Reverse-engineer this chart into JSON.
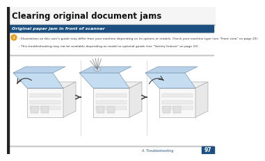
{
  "title": "Clearing original document jams",
  "title_fontsize": 8.5,
  "section_bar_color": "#1b5080",
  "section_text": "Original paper jam in front of scanner",
  "section_fontsize": 4.5,
  "section_text_color": "#ffffff",
  "note_icon_color": "#e8a020",
  "note_text_1": "Illustrations on this user's guide may differ from your machine depending on its options or models. Check your machine type (see \"Front view\" on page 20).",
  "note_text_2": "This troubleshooting may not be available depending on model or optional goods (see \"Variety feature\" on page 10).",
  "note_fontsize": 3.2,
  "footer_text": "4. Troubleshooting",
  "footer_page": "97",
  "footer_fontsize": 3.5,
  "page_bg": "#ffffff",
  "left_bar_color": "#222222",
  "arrow_color": "#444444",
  "blue_accent": "#1b5080",
  "title_bar_color": "#f5f5f5",
  "sep_color": "#cccccc",
  "note_bg": "#fefefe",
  "printer_body_color": "#f0f0f0",
  "printer_edge_color": "#aaaaaa",
  "scanner_lid_color": "#c5ddf0",
  "scanner_edge_color": "#7a9ab5"
}
